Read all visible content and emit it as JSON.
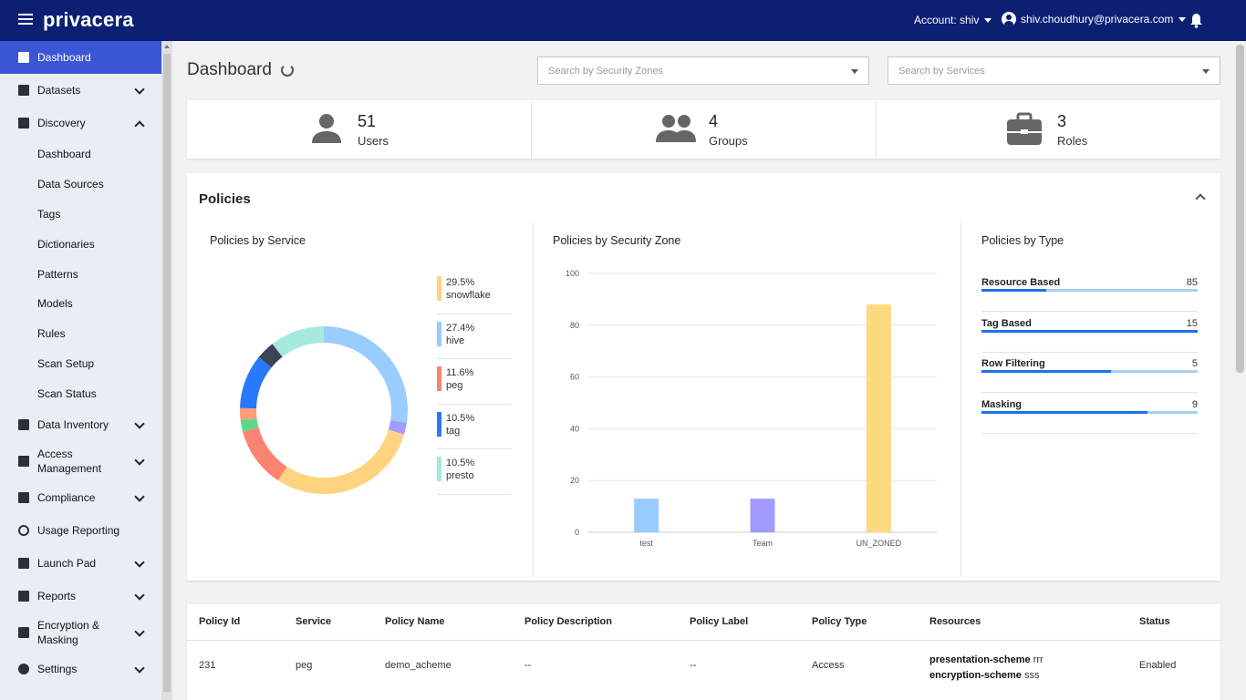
{
  "app": {
    "logo": "privacera"
  },
  "header": {
    "account_label": "Account: shiv",
    "user_email": "shiv.choudhury@privacera.com"
  },
  "sidebar": {
    "items": [
      {
        "label": "Dashboard",
        "icon": "dashboard-icon",
        "active": true
      },
      {
        "label": "Datasets",
        "icon": "datasets-icon",
        "expandable": true
      },
      {
        "label": "Discovery",
        "icon": "discovery-icon",
        "expanded": true,
        "children": [
          "Dashboard",
          "Data Sources",
          "Tags",
          "Dictionaries",
          "Patterns",
          "Models",
          "Rules",
          "Scan Setup",
          "Scan Status"
        ]
      },
      {
        "label": "Data Inventory",
        "icon": "data-inventory-icon",
        "expandable": true
      },
      {
        "label": "Access Management",
        "icon": "access-management-icon",
        "expandable": true
      },
      {
        "label": "Compliance",
        "icon": "shield-icon",
        "expandable": true
      },
      {
        "label": "Usage Reporting",
        "icon": "usage-reporting-icon"
      },
      {
        "label": "Launch Pad",
        "icon": "launch-pad-icon",
        "expandable": true
      },
      {
        "label": "Reports",
        "icon": "reports-icon",
        "expandable": true
      },
      {
        "label": "Encryption & Masking",
        "icon": "encryption-icon",
        "expandable": true
      },
      {
        "label": "Settings",
        "icon": "gear-icon",
        "expandable": true
      }
    ]
  },
  "main": {
    "title": "Dashboard",
    "filters": {
      "zones_placeholder": "Search by Security Zones",
      "services_placeholder": "Search by Services"
    },
    "stats": [
      {
        "value": "51",
        "label": "Users",
        "icon": "user-icon"
      },
      {
        "value": "4",
        "label": "Groups",
        "icon": "groups-icon"
      },
      {
        "value": "3",
        "label": "Roles",
        "icon": "briefcase-icon"
      }
    ],
    "policies": {
      "title": "Policies",
      "by_service_title": "Policies by Service",
      "by_zone_title": "Policies by Security Zone",
      "by_type_title": "Policies by Type",
      "types": [
        {
          "name": "Resource Based",
          "value": "85",
          "fraction": 0.3
        },
        {
          "name": "Tag Based",
          "value": "15",
          "fraction": 1.0
        },
        {
          "name": "Row Filtering",
          "value": "5",
          "fraction": 0.6
        },
        {
          "name": "Masking",
          "value": "9",
          "fraction": 0.77
        }
      ]
    },
    "table": {
      "columns": [
        "Policy Id",
        "Service",
        "Policy Name",
        "Policy Description",
        "Policy Label",
        "Policy Type",
        "Resources",
        "Status"
      ],
      "rows": [
        {
          "id": "231",
          "service": "peg",
          "name": "demo_acheme",
          "description": "--",
          "label": "--",
          "type": "Access",
          "resources": [
            {
              "key": "presentation-scheme",
              "value": "rrr"
            },
            {
              "key": "encryption-scheme",
              "value": "sss"
            }
          ],
          "status": "Enabled"
        }
      ]
    }
  },
  "chart_data": [
    {
      "type": "pie",
      "title": "Policies by Service",
      "slices": [
        {
          "label": "snowflake",
          "value": 29.5,
          "color": "#ffd37f"
        },
        {
          "label": "hive",
          "value": 27.4,
          "color": "#99ccff"
        },
        {
          "label": "peg",
          "value": 11.6,
          "color": "#fa8371"
        },
        {
          "label": "tag",
          "value": 10.5,
          "color": "#2979ff"
        },
        {
          "label": "presto",
          "value": 10.5,
          "color": "#a6eadc"
        },
        {
          "label": "",
          "value": 2.3,
          "color": "#a29bfe"
        },
        {
          "label": "",
          "value": 2.3,
          "color": "#5ed68b"
        },
        {
          "label": "",
          "value": 2.3,
          "color": "#ff9f7a"
        },
        {
          "label": "",
          "value": 3.6,
          "color": "#3d4357"
        }
      ],
      "legend_placement": "right"
    },
    {
      "type": "bar",
      "title": "Policies by Security Zone",
      "categories": [
        "test",
        "Team",
        "UN_ZONED"
      ],
      "values": [
        13,
        13,
        88
      ],
      "colors": [
        "#99ccff",
        "#a29bfe",
        "#ffd980"
      ],
      "ylim": [
        0,
        100
      ],
      "yticks": [
        0,
        20,
        40,
        60,
        80,
        100
      ],
      "grid": true
    }
  ]
}
